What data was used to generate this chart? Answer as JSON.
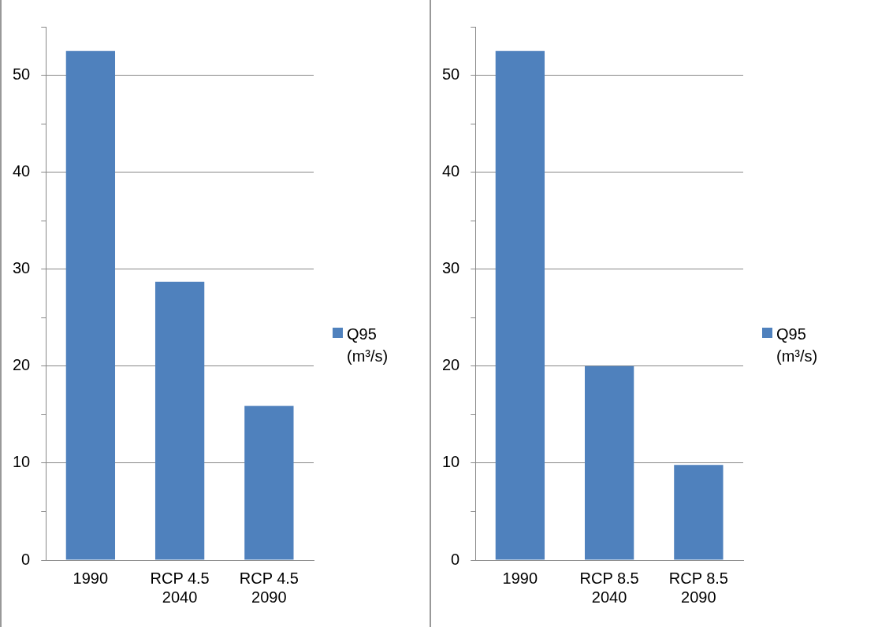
{
  "chart_data": [
    {
      "type": "bar",
      "categories": [
        "1990",
        "RCP 4.5 2040",
        "RCP 4.5 2090"
      ],
      "series": [
        {
          "name": "Q95 (m³/s)",
          "color": "#4f81bd",
          "values": [
            52.5,
            28.7,
            15.9
          ]
        }
      ],
      "ylim": [
        0,
        55
      ],
      "yticks": [
        0,
        {
          "value": 5,
          "label": null
        },
        10,
        {
          "value": 15,
          "label": null
        },
        20,
        {
          "value": 25,
          "label": null
        },
        30,
        {
          "value": 35,
          "label": null
        },
        40,
        {
          "value": 45,
          "label": null
        },
        50,
        {
          "value": 55,
          "label": null
        }
      ],
      "grid": "y",
      "legend": "right"
    },
    {
      "type": "bar",
      "categories": [
        "1990",
        "RCP 8.5 2040",
        "RCP 8.5 2090"
      ],
      "series": [
        {
          "name": "Q95 (m³/s)",
          "color": "#4f81bd",
          "values": [
            52.5,
            20.0,
            9.8
          ]
        }
      ],
      "ylim": [
        0,
        55
      ],
      "yticks": [
        0,
        {
          "value": 5,
          "label": null
        },
        10,
        {
          "value": 15,
          "label": null
        },
        20,
        {
          "value": 25,
          "label": null
        },
        30,
        {
          "value": 35,
          "label": null
        },
        40,
        {
          "value": 45,
          "label": null
        },
        50,
        {
          "value": 55,
          "label": null
        }
      ],
      "grid": "y",
      "legend": "right"
    }
  ]
}
